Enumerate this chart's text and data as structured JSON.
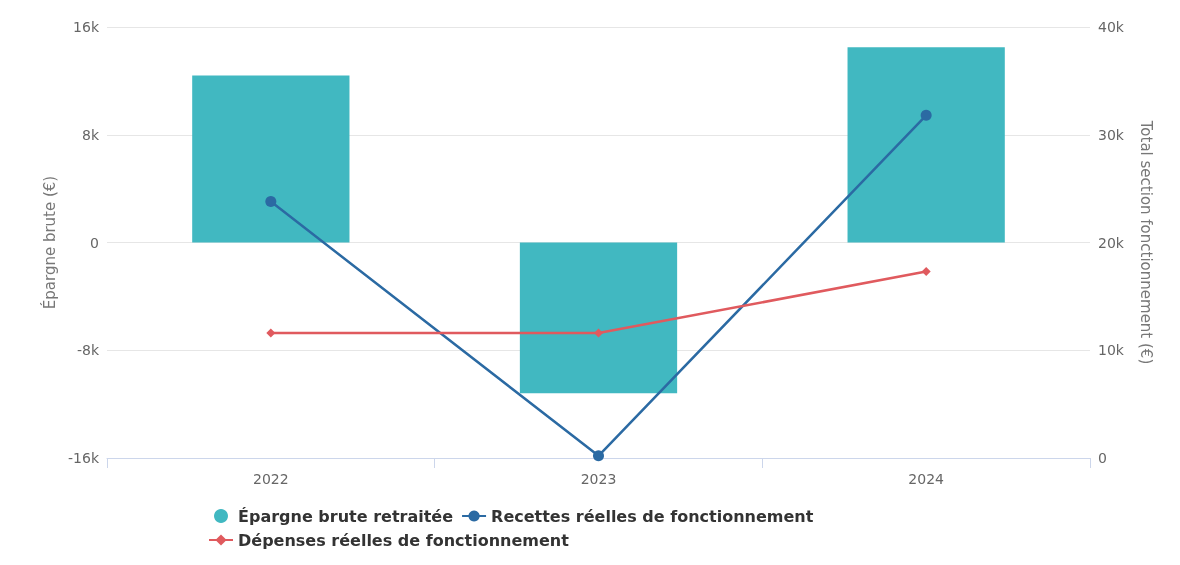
{
  "chart_data": {
    "type": "bar",
    "ylabel": "Épargne brute (€)",
    "y2label": "Total section fonctionnement (€)",
    "categories": [
      "2022",
      "2023",
      "2024"
    ],
    "series": [
      {
        "name": "Épargne brute retraitée",
        "color": "#41b8c1",
        "values": [
          12400,
          -11200,
          14500
        ]
      },
      {
        "name": "Recettes réelles de fonctionnement",
        "type": "line",
        "axis": "y2",
        "marker": "circle",
        "color": "#2b6aa3",
        "values": [
          23800,
          200,
          31800
        ]
      },
      {
        "name": "Dépenses réelles de fonctionnement",
        "type": "line",
        "axis": "y2",
        "marker": "diamond",
        "color": "#e05a5e",
        "values": [
          11600,
          11600,
          17300
        ]
      }
    ],
    "ylim": [
      -16000,
      16000
    ],
    "yticks": [
      {
        "value": -16000,
        "label": "-16k"
      },
      {
        "value": -8000,
        "label": "-8k"
      },
      {
        "value": 0,
        "label": "0"
      },
      {
        "value": 8000,
        "label": "8k"
      },
      {
        "value": 16000,
        "label": "16k"
      }
    ],
    "y2lim": [
      0,
      40000
    ],
    "y2ticks": [
      {
        "value": 0,
        "label": "0"
      },
      {
        "value": 10000,
        "label": "10k"
      },
      {
        "value": 20000,
        "label": "20k"
      },
      {
        "value": 30000,
        "label": "30k"
      },
      {
        "value": 40000,
        "label": "40k"
      }
    ],
    "grid": "y",
    "legend": "bottom"
  }
}
